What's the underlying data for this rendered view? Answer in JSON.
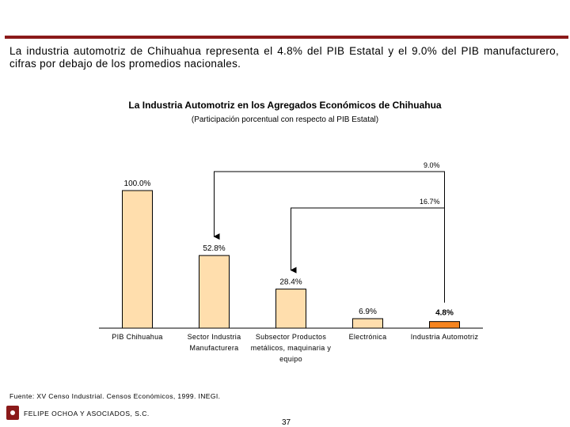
{
  "intro_text": "La industria automotriz de Chihuahua representa el 4.8% del PIB Estatal y el 9.0% del PIB manufacturero, cifras por debajo de los promedios nacionales.",
  "chart_data": {
    "type": "bar",
    "title": "La Industria Automotriz en los Agregados Económicos de Chihuahua",
    "subtitle": "(Participación porcentual con respecto al PIB Estatal)",
    "categories": [
      "PIB Chihuahua",
      "Sector Industria Manufacturera",
      "Subsector Productos metálicos, maquinaria y equipo",
      "Electrónica",
      "Industria Automotriz"
    ],
    "category_lines": [
      [
        "PIB Chihuahua"
      ],
      [
        "Sector Industria",
        "Manufacturera"
      ],
      [
        "Subsector Productos",
        "metálicos, maquinaria y",
        "equipo"
      ],
      [
        "Electrónica"
      ],
      [
        "Industria Automotriz"
      ]
    ],
    "values": [
      100.0,
      52.8,
      28.4,
      6.9,
      4.8
    ],
    "value_labels": [
      "100.0%",
      "52.8%",
      "28.4%",
      "6.9%",
      "4.8%"
    ],
    "highlight_index": 4,
    "bar_color": "#ffdead",
    "highlight_color": "#f5841f",
    "ylim": [
      0,
      100
    ],
    "annotations": [
      {
        "label": "9.0%",
        "from_category": 4,
        "to_category": 1
      },
      {
        "label": "16.7%",
        "from_category": 4,
        "to_category": 2
      }
    ]
  },
  "footer": {
    "source": "Fuente: XV Censo Industrial. Censos Económicos, 1999. INEGI.",
    "company": "FELIPE OCHOA Y ASOCIADOS, S.C.",
    "page_number": "37"
  }
}
